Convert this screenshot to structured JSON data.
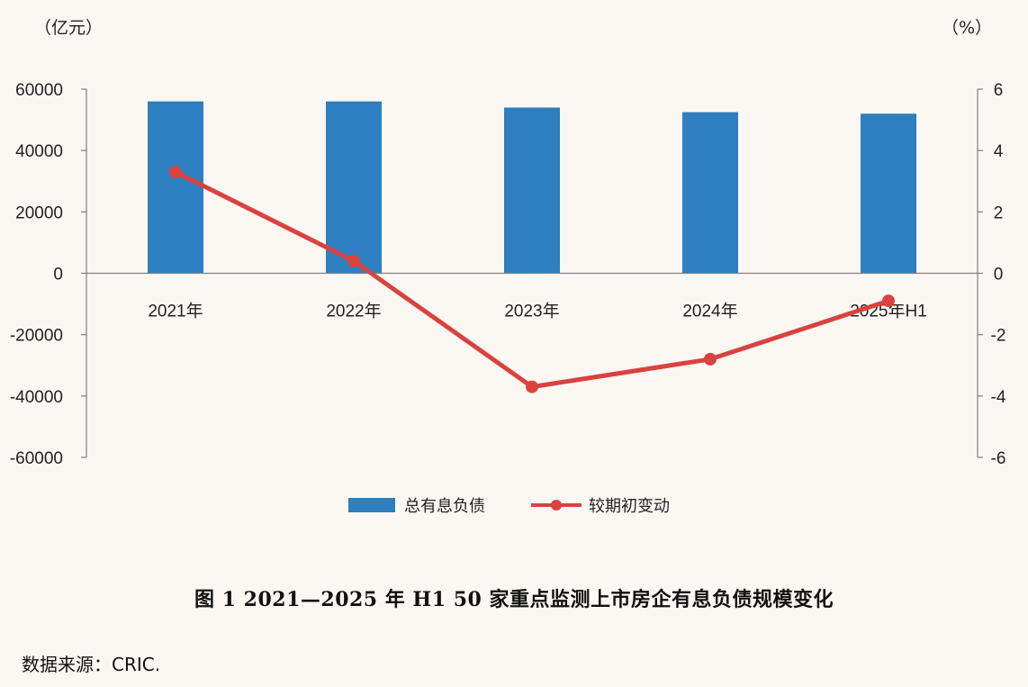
{
  "chart_data": {
    "type": "bar",
    "categories": [
      "2021年",
      "2022年",
      "2023年",
      "2024年",
      "2025年H1"
    ],
    "series": [
      {
        "name": "总有息负债",
        "type": "bar",
        "axis": "left",
        "values": [
          56000,
          56000,
          54000,
          52500,
          52000
        ]
      },
      {
        "name": "较期初变动",
        "type": "line",
        "axis": "right",
        "values": [
          3.3,
          0.4,
          -3.7,
          -2.8,
          -0.9
        ]
      }
    ],
    "left_unit": "（亿元）",
    "right_unit": "（%）",
    "ylim_left": [
      -60000,
      60000
    ],
    "yticks_left": [
      "60000",
      "40000",
      "20000",
      "0",
      "-20000",
      "-40000",
      "-60000"
    ],
    "ylim_right": [
      -6,
      6
    ],
    "yticks_right": [
      "6",
      "4",
      "2",
      "0",
      "-2",
      "-4",
      "-6"
    ],
    "grid": false,
    "legend_position": "bottom",
    "colors": {
      "bar": "#2e7fbf",
      "line": "#d9423f",
      "axis": "#7f7f7f"
    }
  },
  "caption": "图 1  2021—2025 年 H1  50 家重点监测上市房企有息负债规模变化",
  "source": "数据来源：CRIC."
}
